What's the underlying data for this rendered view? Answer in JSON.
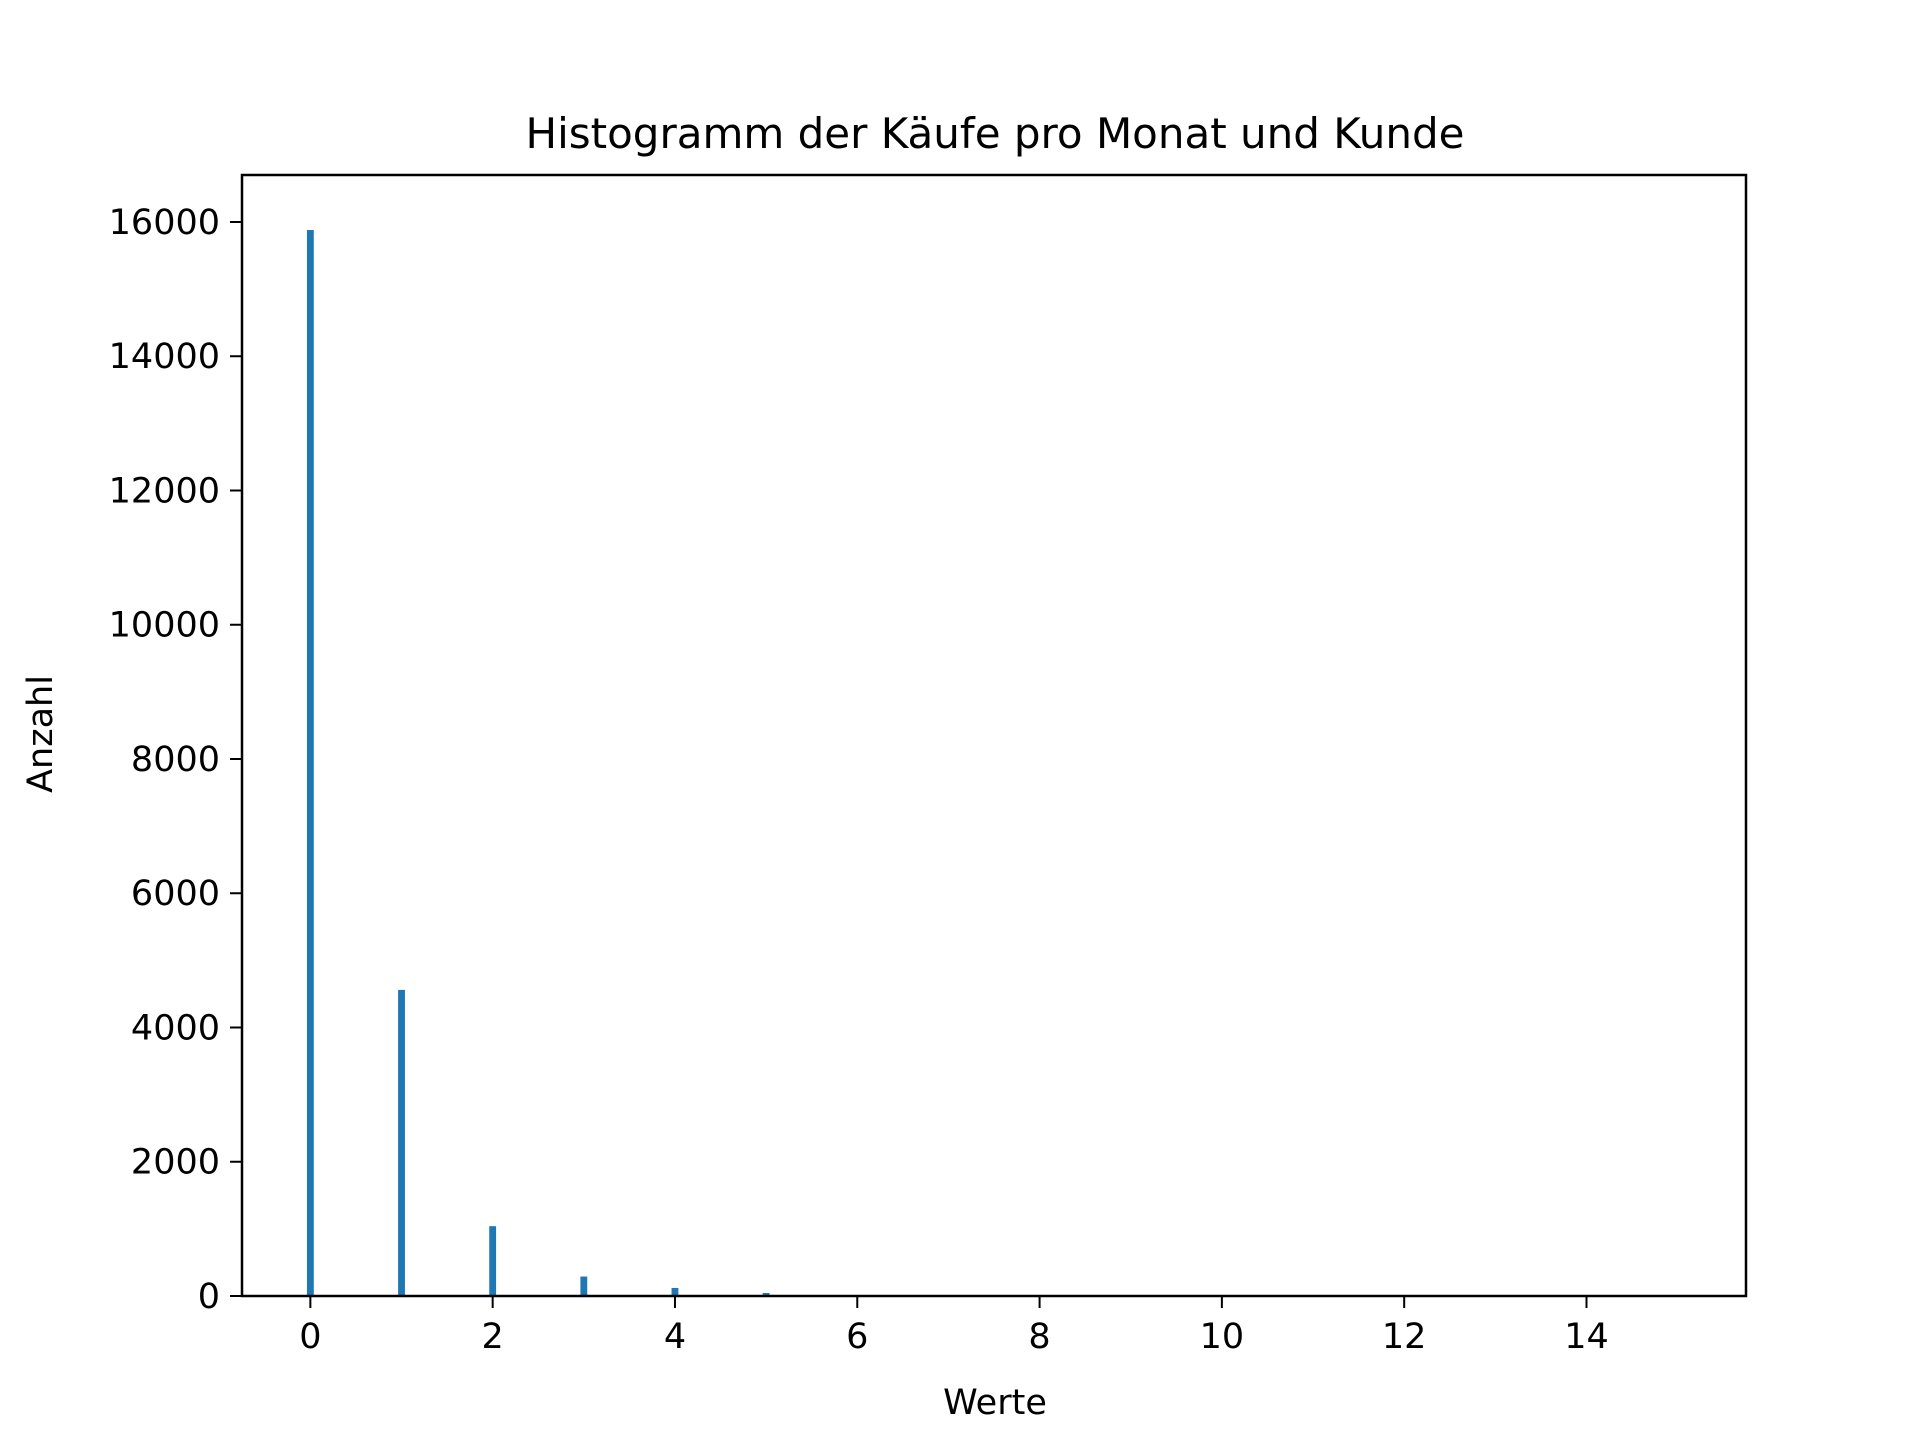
{
  "chart_data": {
    "type": "bar",
    "title": "Histogramm der Käufe pro Monat und Kunde",
    "xlabel": "Werte",
    "ylabel": "Anzahl",
    "xlim": [
      -0.75,
      15.75
    ],
    "ylim": [
      0,
      16700
    ],
    "xticks": [
      0,
      2,
      4,
      6,
      8,
      10,
      12,
      14
    ],
    "yticks": [
      0,
      2000,
      4000,
      6000,
      8000,
      10000,
      12000,
      14000,
      16000
    ],
    "bin_width": 0.075,
    "series": [
      {
        "x": [
          0,
          1,
          2,
          3,
          4,
          5,
          6,
          7,
          8,
          9,
          10,
          11,
          12,
          13,
          14,
          15
        ],
        "values": [
          15880,
          4560,
          1040,
          290,
          120,
          45,
          15,
          8,
          5,
          3,
          2,
          1,
          1,
          1,
          1,
          1
        ]
      }
    ],
    "color": "#1f77b4",
    "grid": false,
    "legend": "none"
  }
}
